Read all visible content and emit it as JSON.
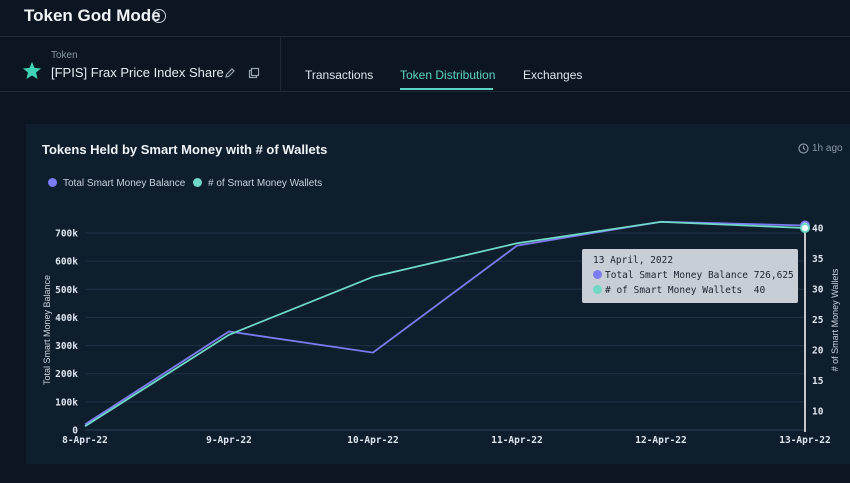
{
  "app": {
    "title": "Token God Mode"
  },
  "token": {
    "label": "Token",
    "name": "[FPIS] Frax Price Index Share"
  },
  "tabs": [
    {
      "label": "Transactions",
      "active": false
    },
    {
      "label": "Token Distribution",
      "active": true
    },
    {
      "label": "Exchanges",
      "active": false
    }
  ],
  "card": {
    "title": "Tokens Held by Smart Money with # of Wallets",
    "updated": "1h ago"
  },
  "legend": [
    {
      "label": "Total Smart Money Balance",
      "color": "#7b7bf2"
    },
    {
      "label": "# of Smart Money Wallets",
      "color": "#6fd8c6"
    }
  ],
  "tooltip": {
    "date": "13 April, 2022",
    "rows": [
      {
        "label": "Total Smart Money Balance",
        "value": "726,625",
        "color": "#7b7bf2"
      },
      {
        "label": "# of Smart Money Wallets",
        "value": "40",
        "color": "#6fd8c6"
      }
    ]
  },
  "chart_data": {
    "type": "line",
    "title": "Tokens Held by Smart Money with # of Wallets",
    "x": [
      "8-Apr-22",
      "9-Apr-22",
      "10-Apr-22",
      "11-Apr-22",
      "12-Apr-22",
      "13-Apr-22"
    ],
    "xlabel": "",
    "ylabel": "Total Smart Money Balance",
    "y2label": "# of Smart Money Wallets",
    "ylim": [
      0,
      700000
    ],
    "y2lim": [
      7,
      42
    ],
    "yticks": [
      0,
      100000,
      200000,
      300000,
      400000,
      500000,
      600000,
      700000
    ],
    "ytick_labels": [
      "0",
      "100k",
      "200k",
      "300k",
      "400k",
      "500k",
      "600k",
      "700k"
    ],
    "y2ticks": [
      10,
      15,
      20,
      25,
      30,
      35,
      40
    ],
    "y2tick_labels": [
      "10",
      "15",
      "20",
      "25",
      "30",
      "35",
      "40"
    ],
    "grid": true,
    "legend_position": "top-left",
    "series": [
      {
        "name": "Total Smart Money Balance",
        "axis": "left",
        "color": "#7b7bf2",
        "values": [
          20000,
          350000,
          275000,
          655000,
          740000,
          726625
        ]
      },
      {
        "name": "# of Smart Money Wallets",
        "axis": "right",
        "color": "#6fd8c6",
        "values": [
          7.5,
          22.5,
          32,
          37.5,
          41,
          40
        ]
      }
    ]
  }
}
